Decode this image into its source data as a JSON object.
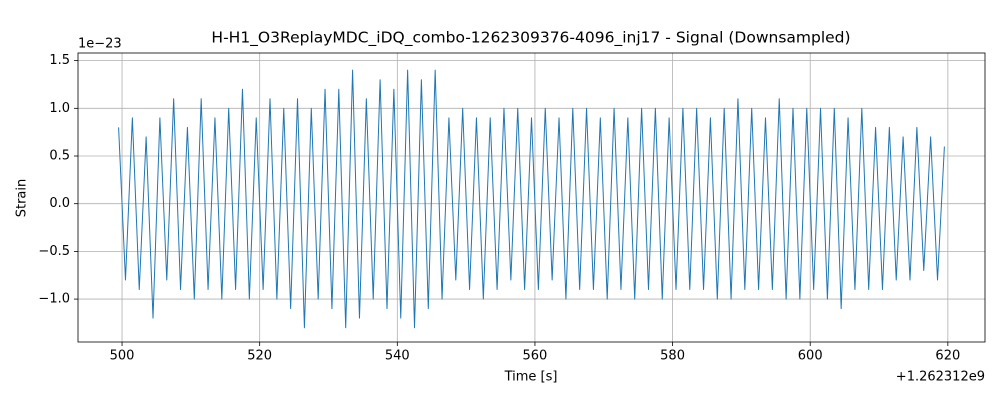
{
  "chart_data": {
    "type": "line",
    "title": "H-H1_O3ReplayMDC_iDQ_combo-1262309376-4096_inj17 - Signal (Downsampled)",
    "x_label": "Time [s]",
    "y_label": "Strain",
    "x_offset_text": "+1.262312e9",
    "y_offset_text": "1e−23",
    "x": [
      499.5,
      500.5,
      501.5,
      502.5,
      503.5,
      504.5,
      505.5,
      506.5,
      507.5,
      508.5,
      509.5,
      510.5,
      511.5,
      512.5,
      513.5,
      514.5,
      515.5,
      516.5,
      517.5,
      518.5,
      519.5,
      520.5,
      521.5,
      522.5,
      523.5,
      524.5,
      525.5,
      526.5,
      527.5,
      528.5,
      529.5,
      530.5,
      531.5,
      532.5,
      533.5,
      534.5,
      535.5,
      536.5,
      537.5,
      538.5,
      539.5,
      540.5,
      541.5,
      542.5,
      543.5,
      544.5,
      545.5,
      546.5,
      547.5,
      548.5,
      549.5,
      550.5,
      551.5,
      552.5,
      553.5,
      554.5,
      555.5,
      556.5,
      557.5,
      558.5,
      559.5,
      560.5,
      561.5,
      562.5,
      563.5,
      564.5,
      565.5,
      566.5,
      567.5,
      568.5,
      569.5,
      570.5,
      571.5,
      572.5,
      573.5,
      574.5,
      575.5,
      576.5,
      577.5,
      578.5,
      579.5,
      580.5,
      581.5,
      582.5,
      583.5,
      584.5,
      585.5,
      586.5,
      587.5,
      588.5,
      589.5,
      590.5,
      591.5,
      592.5,
      593.5,
      594.5,
      595.5,
      596.5,
      597.5,
      598.5,
      599.5,
      600.5,
      601.5,
      602.5,
      603.5,
      604.5,
      605.5,
      606.5,
      607.5,
      608.5,
      609.5,
      610.5,
      611.5,
      612.5,
      613.5,
      614.5,
      615.5,
      616.5,
      617.5,
      618.5,
      619.5
    ],
    "series": [
      {
        "color": "#1f77b4",
        "values": [
          0.8,
          -0.8,
          0.9,
          -0.9,
          0.7,
          -1.2,
          0.9,
          -0.8,
          1.1,
          -0.9,
          0.8,
          -1.0,
          1.1,
          -0.9,
          0.9,
          -1.0,
          1.0,
          -0.9,
          1.2,
          -1.0,
          0.9,
          -0.9,
          1.1,
          -1.0,
          1.0,
          -1.1,
          1.1,
          -1.3,
          1.0,
          -1.0,
          1.2,
          -1.1,
          1.2,
          -1.3,
          1.4,
          -1.2,
          1.1,
          -1.0,
          1.3,
          -1.1,
          1.2,
          -1.2,
          1.4,
          -1.3,
          1.3,
          -1.1,
          1.4,
          -1.0,
          0.9,
          -0.8,
          1.0,
          -0.9,
          0.9,
          -1.0,
          0.9,
          -0.9,
          1.0,
          -0.8,
          1.0,
          -0.9,
          0.9,
          -0.9,
          1.0,
          -0.8,
          0.9,
          -1.0,
          1.0,
          -0.9,
          1.0,
          -0.9,
          0.9,
          -1.0,
          1.0,
          -0.9,
          0.9,
          -1.0,
          1.0,
          -0.9,
          1.0,
          -1.0,
          0.9,
          -0.9,
          1.0,
          -0.9,
          1.0,
          -0.9,
          0.9,
          -1.0,
          1.0,
          -1.0,
          1.1,
          -0.9,
          1.0,
          -0.9,
          0.9,
          -0.9,
          1.1,
          -1.0,
          1.0,
          -1.0,
          1.0,
          -0.9,
          1.0,
          -1.0,
          1.0,
          -1.1,
          0.9,
          -0.9,
          1.0,
          -0.9,
          0.8,
          -0.9,
          0.8,
          -0.8,
          0.7,
          -0.8,
          0.8,
          -0.7,
          0.7,
          -0.8,
          0.6
        ]
      }
    ],
    "xlim": [
      493.6,
      625.4
    ],
    "ylim": [
      -1.45,
      1.58
    ],
    "xticks": [
      500,
      520,
      540,
      560,
      580,
      600,
      620
    ],
    "yticks": [
      {
        "value": -1,
        "label": "−1.0"
      },
      {
        "value": -0.5,
        "label": "−0.5"
      },
      {
        "value": 0,
        "label": "0.0"
      },
      {
        "value": 0.5,
        "label": "0.5"
      },
      {
        "value": 1,
        "label": "1.0"
      },
      {
        "value": 1.5,
        "label": "1.5"
      }
    ],
    "grid": true
  }
}
